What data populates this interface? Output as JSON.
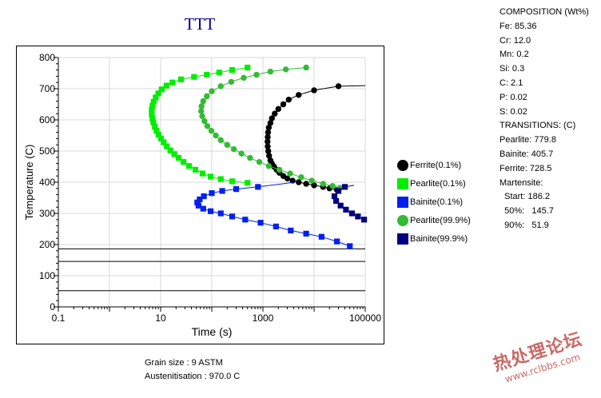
{
  "window": {
    "title": "TTT",
    "footer": {
      "grain_size": "Grain size : 9 ASTM",
      "austenitisation": "Austenitisation : 970.0 C"
    }
  },
  "info_panel": {
    "lines": [
      "COMPOSITION (Wt%)",
      "Fe: 85.36",
      "Cr: 12.0",
      "Mn: 0.2",
      "Si: 0.3",
      "C: 2.1",
      "P: 0.02",
      "S: 0.02",
      "TRANSITIONS: (C)",
      "Pearlite: 779.8",
      "Bainite: 405.7",
      "Ferrite: 728.5",
      "Martensite:",
      "  Start: 186.2",
      "  50%:   145.7",
      "  90%:   51.9"
    ]
  },
  "watermark": {
    "main": "热处理论坛",
    "sub": "www.rclbbs.com"
  },
  "colors": {
    "ferrite": "#000000",
    "pearlite_start": "#00ee00",
    "bainite_start": "#0020ee",
    "pearlite_end": "#33bb33",
    "bainite_end": "#000080",
    "title": "#00008b"
  },
  "chart_data": {
    "type": "scatter",
    "title": "TTT",
    "xlabel": "Time (s)",
    "ylabel": "Temperature (C)",
    "xscale": "log",
    "xlim": [
      0.1,
      100000
    ],
    "ylim": [
      0,
      800
    ],
    "xticks": [
      "0.1",
      "10",
      "1000",
      "100000"
    ],
    "yticks": [
      "0",
      "100",
      "200",
      "300",
      "400",
      "500",
      "600",
      "700",
      "800"
    ],
    "grid": true,
    "legend_position": "right",
    "martensite_lines": [
      186.2,
      145.7,
      51.9
    ],
    "series": [
      {
        "name": "Ferrite(0.1%)",
        "marker": "circle",
        "color": "#000000",
        "x": [
          30000,
          10000,
          5000,
          3200,
          2500,
          2000,
          1700,
          1500,
          1400,
          1300,
          1260,
          1240,
          1230,
          1240,
          1270,
          1320,
          1400,
          1500,
          1650,
          1850,
          2100,
          2500,
          3000,
          3800,
          5000,
          7000,
          10000,
          15000,
          20000,
          28000
        ],
        "y": [
          708,
          695,
          680,
          665,
          650,
          635,
          620,
          605,
          590,
          575,
          560,
          545,
          530,
          515,
          500,
          485,
          470,
          460,
          450,
          440,
          430,
          420,
          412,
          405,
          400,
          395,
          390,
          385,
          380,
          375
        ],
        "curve": {
          "x": [
            100000,
            30000,
            10000,
            5000,
            3200,
            2500,
            2000,
            1700,
            1500,
            1400,
            1300,
            1260,
            1240,
            1230,
            1240,
            1270,
            1320,
            1400,
            1500,
            1650,
            1850,
            2100,
            2500,
            3000,
            3800,
            5000,
            7000,
            10000,
            15000,
            20000,
            28000
          ],
          "y": [
            710,
            708,
            695,
            680,
            665,
            650,
            635,
            620,
            605,
            590,
            575,
            560,
            545,
            530,
            515,
            500,
            485,
            470,
            460,
            450,
            440,
            430,
            420,
            412,
            405,
            400,
            395,
            390,
            385,
            380,
            375
          ]
        }
      },
      {
        "name": "Pearlite(0.1%)",
        "marker": "square",
        "color": "#00ee00",
        "x": [
          500,
          250,
          140,
          80,
          45,
          25,
          17,
          13,
          10.5,
          9,
          8,
          7.3,
          6.9,
          6.7,
          6.7,
          6.9,
          7.2,
          7.7,
          8.3,
          9.1,
          10.2,
          11.5,
          13.2,
          15.5,
          18.5,
          22.5,
          28,
          36,
          48,
          66,
          95,
          150,
          250,
          500
        ],
        "y": [
          768,
          760,
          752,
          745,
          738,
          730,
          720,
          710,
          698,
          685,
          672,
          658,
          645,
          632,
          618,
          604,
          592,
          578,
          565,
          552,
          540,
          528,
          515,
          502,
          490,
          478,
          465,
          452,
          440,
          428,
          418,
          410,
          403,
          398
        ],
        "curve": {
          "x": [
            500,
            250,
            140,
            80,
            45,
            25,
            17,
            13,
            10.5,
            9,
            8,
            7.3,
            6.9,
            6.7,
            6.7,
            6.9,
            7.2,
            7.7,
            8.3,
            9.1,
            10.2,
            11.5,
            13.2,
            15.5,
            18.5,
            22.5,
            28,
            36,
            48,
            66,
            95,
            150,
            250,
            500
          ],
          "y": [
            768,
            760,
            752,
            745,
            738,
            730,
            720,
            710,
            698,
            685,
            672,
            658,
            645,
            632,
            618,
            604,
            592,
            578,
            565,
            552,
            540,
            528,
            515,
            502,
            490,
            478,
            465,
            452,
            440,
            428,
            418,
            410,
            403,
            398
          ]
        }
      },
      {
        "name": "Bainite(0.1%)",
        "marker": "square",
        "color": "#0020ee",
        "x": [
          800,
          300,
          160,
          100,
          70,
          58,
          52,
          55,
          68,
          95,
          150,
          250,
          450,
          900,
          1800,
          3500,
          7000,
          14000,
          28000,
          50000
        ],
        "y": [
          385,
          378,
          372,
          365,
          355,
          345,
          335,
          325,
          315,
          307,
          300,
          290,
          280,
          270,
          258,
          245,
          235,
          225,
          210,
          195
        ],
        "curve": {
          "x": [
            4000,
            2500,
            800,
            300,
            160,
            100,
            70,
            58,
            52,
            55,
            68,
            95,
            150,
            250,
            450,
            900,
            1800,
            3500,
            7000,
            14000,
            28000,
            50000
          ],
          "y": [
            400,
            395,
            385,
            378,
            372,
            365,
            355,
            345,
            335,
            325,
            315,
            307,
            300,
            290,
            280,
            270,
            258,
            245,
            235,
            225,
            210,
            195
          ]
        }
      },
      {
        "name": "Pearlite(99.9%)",
        "marker": "circle",
        "color": "#33bb33",
        "x": [
          7000,
          2800,
          1400,
          750,
          420,
          240,
          150,
          100,
          80,
          68,
          63,
          62,
          65,
          72,
          82,
          98,
          120,
          150,
          200,
          270,
          380,
          560,
          850,
          1300,
          2100,
          3400,
          5600,
          9000,
          15000,
          23000,
          32000
        ],
        "y": [
          768,
          762,
          755,
          745,
          735,
          722,
          708,
          692,
          676,
          660,
          644,
          628,
          612,
          596,
          580,
          565,
          550,
          535,
          520,
          506,
          492,
          478,
          465,
          452,
          440,
          428,
          416,
          405,
          395,
          388,
          382
        ],
        "curve": {
          "x": [
            7000,
            2800,
            1400,
            750,
            420,
            240,
            150,
            100,
            80,
            68,
            63,
            62,
            65,
            72,
            82,
            98,
            120,
            150,
            200,
            270,
            380,
            560,
            850,
            1300,
            2100,
            3400,
            5600,
            9000,
            15000,
            23000,
            32000
          ],
          "y": [
            768,
            762,
            755,
            745,
            735,
            722,
            708,
            692,
            676,
            660,
            644,
            628,
            612,
            596,
            580,
            565,
            550,
            535,
            520,
            506,
            492,
            478,
            465,
            452,
            440,
            428,
            416,
            405,
            395,
            388,
            382
          ]
        }
      },
      {
        "name": "Bainite(99.9%)",
        "marker": "square",
        "color": "#000080",
        "x": [
          40000,
          30000,
          25000,
          27000,
          33000,
          42000,
          55000,
          72000,
          95000
        ],
        "y": [
          385,
          372,
          355,
          340,
          325,
          312,
          300,
          290,
          280
        ],
        "curve": {
          "x": [
            60000,
            40000,
            30000,
            25000,
            27000,
            33000,
            42000,
            55000,
            72000,
            95000
          ],
          "y": [
            390,
            385,
            372,
            355,
            340,
            325,
            312,
            300,
            290,
            280
          ]
        }
      }
    ]
  }
}
